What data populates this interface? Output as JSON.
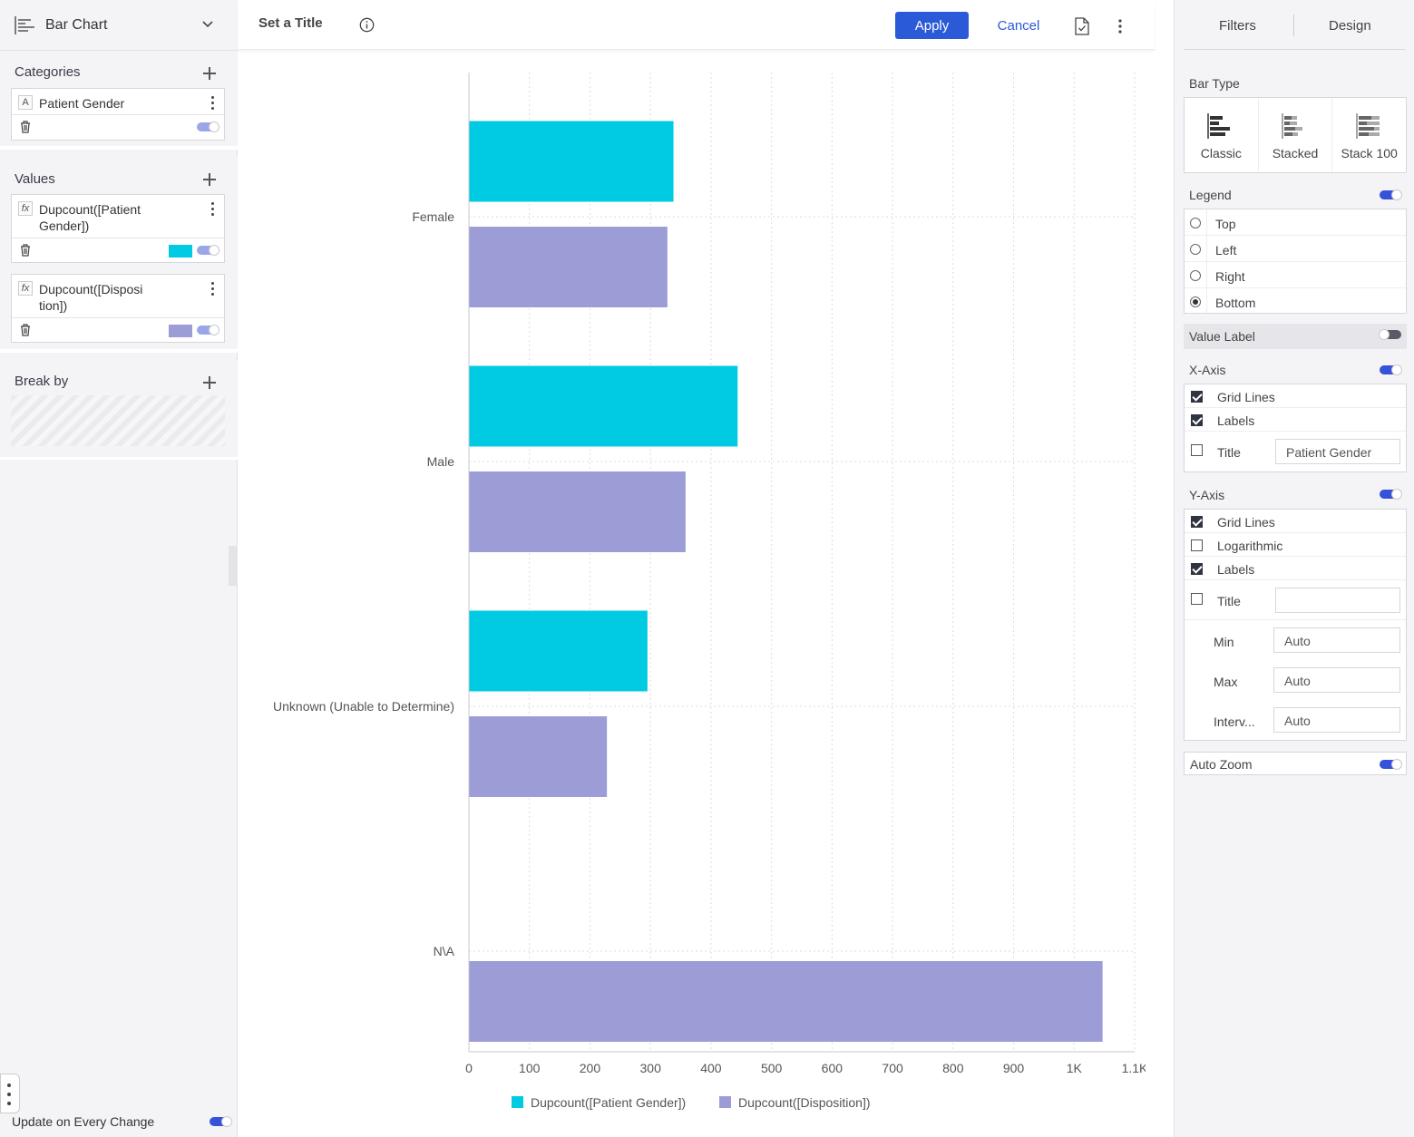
{
  "left_panel": {
    "widget_type": "Bar Chart",
    "categories": {
      "title": "Categories",
      "items": [
        {
          "badge": "A",
          "name": "Patient Gender"
        }
      ]
    },
    "values": {
      "title": "Values",
      "items": [
        {
          "badge": "fx",
          "name": "Dupcount([Patient Gender])",
          "color": "#00cbe2"
        },
        {
          "badge": "fx",
          "name": "Dupcount([Disposition])",
          "color": "#9c9cd7"
        }
      ]
    },
    "break_by": {
      "title": "Break by"
    },
    "update_label": "Update on Every Change"
  },
  "toolbar": {
    "title": "Set a Title",
    "apply": "Apply",
    "cancel": "Cancel"
  },
  "chart_data": {
    "type": "bar",
    "orientation": "horizontal",
    "categories": [
      "Female",
      "Male",
      "Unknown (Unable to Determine)",
      "N\\A"
    ],
    "series": [
      {
        "name": "Dupcount([Patient Gender])",
        "color": "#00cbe2",
        "values": [
          338,
          444,
          295,
          0
        ]
      },
      {
        "name": "Dupcount([Disposition])",
        "color": "#9c9cd7",
        "values": [
          328,
          358,
          228,
          1047
        ]
      }
    ],
    "x_ticks": [
      "0",
      "100",
      "200",
      "300",
      "400",
      "500",
      "600",
      "700",
      "800",
      "900",
      "1K",
      "1.1K"
    ],
    "xlim": [
      0,
      1100
    ],
    "grid": true,
    "legend": "bottom"
  },
  "right_panel": {
    "tabs": [
      "Filters",
      "Design"
    ],
    "bar_type": {
      "label": "Bar Type",
      "options": [
        "Classic",
        "Stacked",
        "Stack 100"
      ]
    },
    "legend": {
      "label": "Legend",
      "options": [
        "Top",
        "Left",
        "Right",
        "Bottom"
      ],
      "selected": "Bottom"
    },
    "value_label": "Value Label",
    "x_axis": {
      "label": "X-Axis",
      "grid_lines": "Grid Lines",
      "labels": "Labels",
      "title": "Title",
      "title_value": "Patient Gender"
    },
    "y_axis": {
      "label": "Y-Axis",
      "grid_lines": "Grid Lines",
      "logarithmic": "Logarithmic",
      "labels": "Labels",
      "title": "Title",
      "min_label": "Min",
      "max_label": "Max",
      "interval_label": "Interv...",
      "min": "Auto",
      "max": "Auto",
      "interval": "Auto"
    },
    "auto_zoom": "Auto Zoom"
  }
}
